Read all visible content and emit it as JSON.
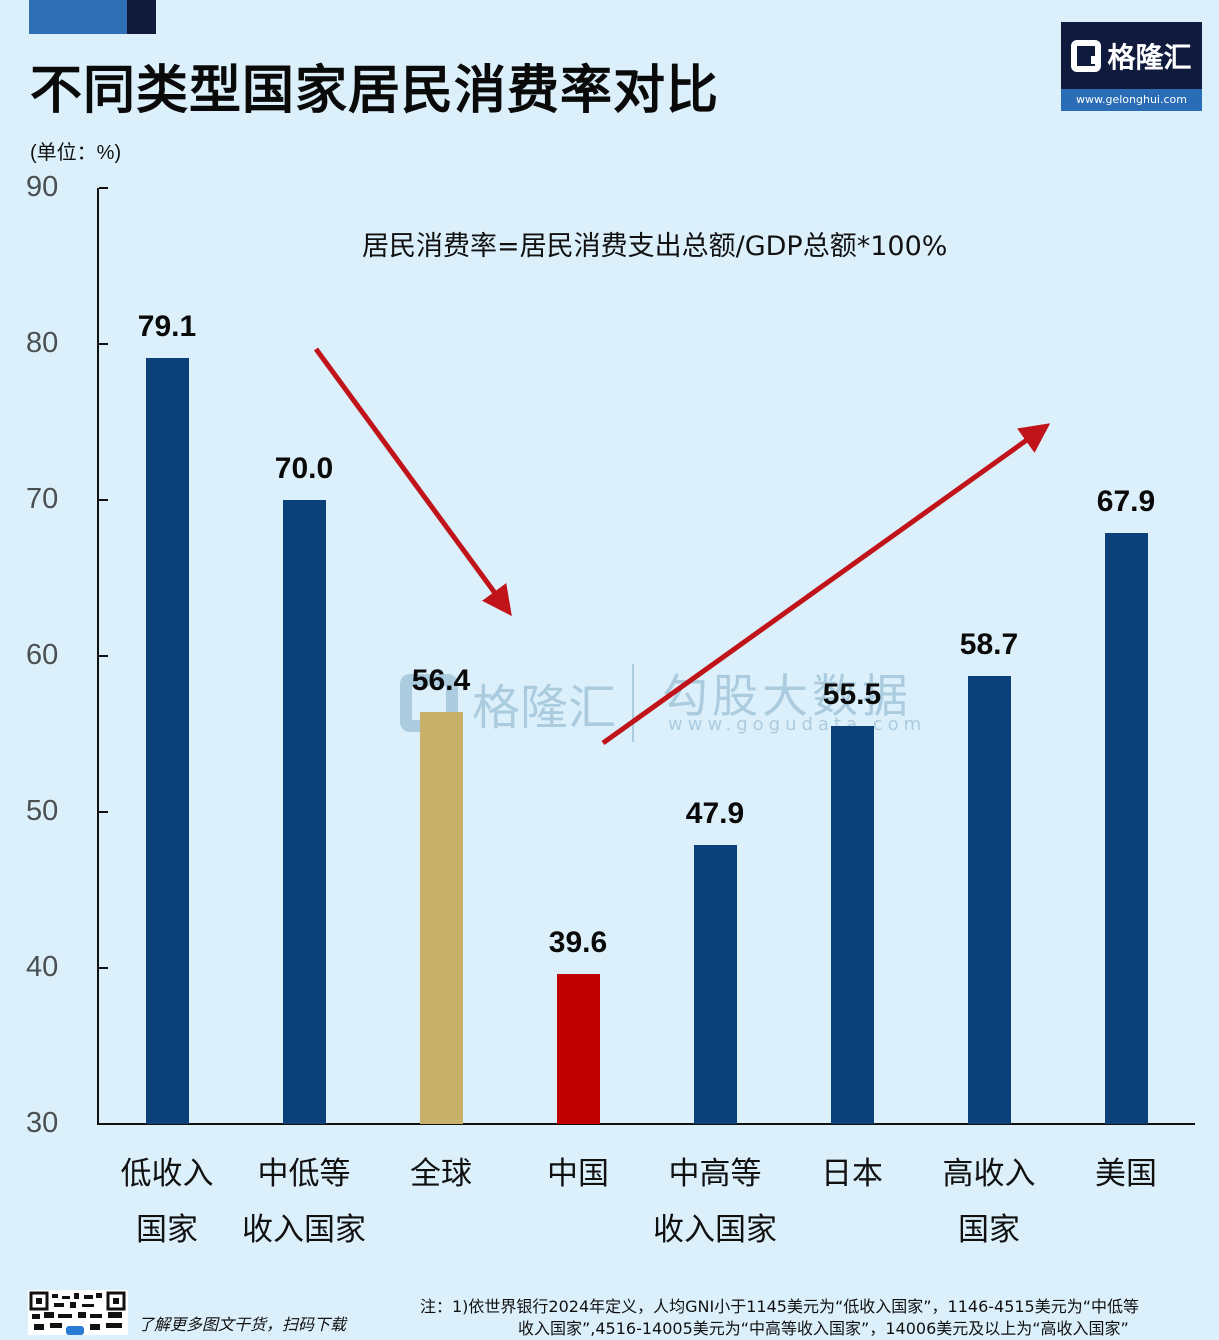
{
  "header": {
    "title": "不同类型国家居民消费率对比",
    "unit_label": "(单位：%)",
    "logo": {
      "brand": "格隆汇",
      "url": "www.gelonghui.com",
      "colors": {
        "dark": "#101a3c",
        "band": "#2a6db6"
      }
    }
  },
  "annotation": {
    "formula": "居民消费率=居民消费支出总额/GDP总额*100%"
  },
  "watermark": {
    "brand": "格隆汇",
    "secondary": "勾股大数据",
    "url": "www.gogudata.com"
  },
  "chart_data": {
    "type": "bar",
    "title": "不同类型国家居民消费率对比",
    "subtitle": "居民消费率=居民消费支出总额/GDP总额*100%",
    "xlabel": "",
    "ylabel": "(单位：%)",
    "ylim": [
      30,
      90
    ],
    "yticks": [
      30,
      40,
      50,
      60,
      70,
      80,
      90
    ],
    "grid": false,
    "legend": null,
    "categories": [
      "低收入国家",
      "中低等收入国家",
      "全球",
      "中国",
      "中高等收入国家",
      "日本",
      "高收入国家",
      "美国"
    ],
    "category_lines": [
      [
        "低收入",
        "国家"
      ],
      [
        "中低等",
        "收入国家"
      ],
      [
        "全球",
        ""
      ],
      [
        "中国",
        ""
      ],
      [
        "中高等",
        "收入国家"
      ],
      [
        "日本",
        ""
      ],
      [
        "高收入",
        "国家"
      ],
      [
        "美国",
        ""
      ]
    ],
    "values": [
      79.1,
      70.0,
      56.4,
      39.6,
      47.9,
      55.5,
      58.7,
      67.9
    ],
    "value_labels": [
      "79.1",
      "70.0",
      "56.4",
      "39.6",
      "47.9",
      "55.5",
      "58.7",
      "67.9"
    ],
    "bar_colors": [
      "#0b4078",
      "#0b4078",
      "#c6b06a",
      "#c00000",
      "#0b4078",
      "#0b4078",
      "#0b4078",
      "#0b4078"
    ],
    "annotations": [
      {
        "type": "arrow",
        "direction": "down",
        "from_category": "中低等收入国家",
        "to_category": "中国",
        "color": "#c0141a"
      },
      {
        "type": "arrow",
        "direction": "up",
        "from_category": "中国",
        "to_category": "美国",
        "color": "#c0141a"
      }
    ]
  },
  "footer": {
    "cta": "了解更多图文干货，扫码下载",
    "note_line1": "注：1)依世界银行2024年定义，人均GNI小于1145美元为“低收入国家”，1146-4515美元为“中低等",
    "note_line2": "收入国家”,4516-14005美元为“中高等收入国家”，14006美元及以上为“高收入国家”"
  }
}
